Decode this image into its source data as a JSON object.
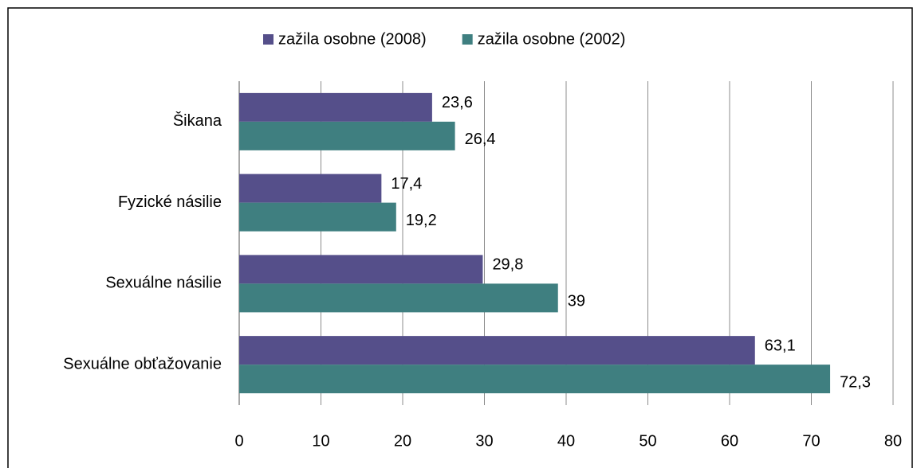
{
  "chart_data": {
    "type": "hbar",
    "categories": [
      "Šikana",
      "Fyzické násilie",
      "Sexuálne násilie",
      "Sexuálne obťažovanie"
    ],
    "series": [
      {
        "name": "zažila osobne (2008)",
        "color": "#554f8a",
        "values": [
          23.6,
          17.4,
          29.8,
          63.1
        ],
        "value_labels": [
          "23,6",
          "17,4",
          "29,8",
          "63,1"
        ]
      },
      {
        "name": "zažila osobne (2002)",
        "color": "#3f7f80",
        "values": [
          26.4,
          19.2,
          39,
          72.3
        ],
        "value_labels": [
          "26,4",
          "19,2",
          "39",
          "72,3"
        ]
      }
    ],
    "xlim": [
      0,
      80
    ],
    "xticks": [
      0,
      10,
      20,
      30,
      40,
      50,
      60,
      70,
      80
    ],
    "grid": true,
    "legend": "top"
  }
}
